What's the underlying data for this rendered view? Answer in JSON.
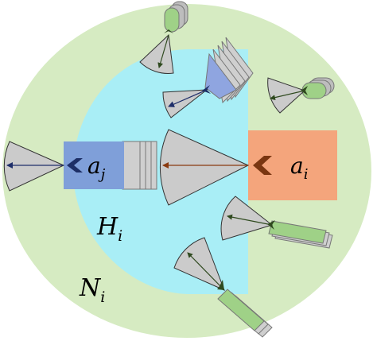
{
  "colors": {
    "neighborhood": "#d6ebc2",
    "hidden_region": "#a9eef6",
    "agent_i": "#f4a57c",
    "agent_j": "#7f9fd9",
    "fov": "#cbcbcb",
    "tail_gray": "#bdbdbd",
    "tail_green": "#9fd187",
    "tail_blue": "#8fa5e0",
    "chevron_i": "#7a3611",
    "chevron_j": "#1d2f66",
    "arrow_i": "#8a3a10",
    "arrow_j": "#1f2f6a",
    "arrow_green": "#2f4a1f"
  },
  "icons": {
    "agent_i_heading": "chevron-left-icon",
    "agent_j_heading": "chevron-left-icon",
    "neighbor_heading": "chevron-icon"
  },
  "labels": {
    "agent_i": {
      "main": "a",
      "sub": "i"
    },
    "agent_j": {
      "main": "a",
      "sub": "j"
    },
    "hidden_region": {
      "main": "H",
      "sub": "i"
    },
    "neighborhood": {
      "main": "N",
      "sub": "i"
    }
  }
}
